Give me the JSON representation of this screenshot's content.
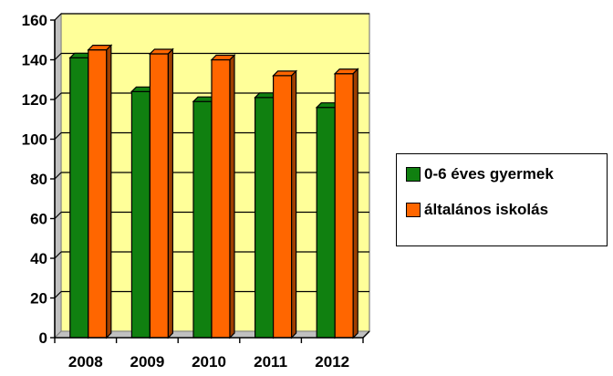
{
  "chart_data": {
    "type": "bar",
    "categories": [
      "2008",
      "2009",
      "2010",
      "2011",
      "2012"
    ],
    "series": [
      {
        "name": "0-6 éves gyermek",
        "values": [
          141,
          124,
          119,
          121,
          116
        ],
        "color": "#108010"
      },
      {
        "name": "általános iskolás",
        "values": [
          145,
          143,
          140,
          132,
          133
        ],
        "color": "#ff6600"
      }
    ],
    "title": "",
    "xlabel": "",
    "ylabel": "",
    "ylim": [
      0,
      160
    ],
    "yticks": [
      "0",
      "20",
      "40",
      "60",
      "80",
      "100",
      "120",
      "140",
      "160"
    ],
    "grid": true,
    "legend_position": "right",
    "plot_background": "#ffff99",
    "style": "3d-bar"
  }
}
